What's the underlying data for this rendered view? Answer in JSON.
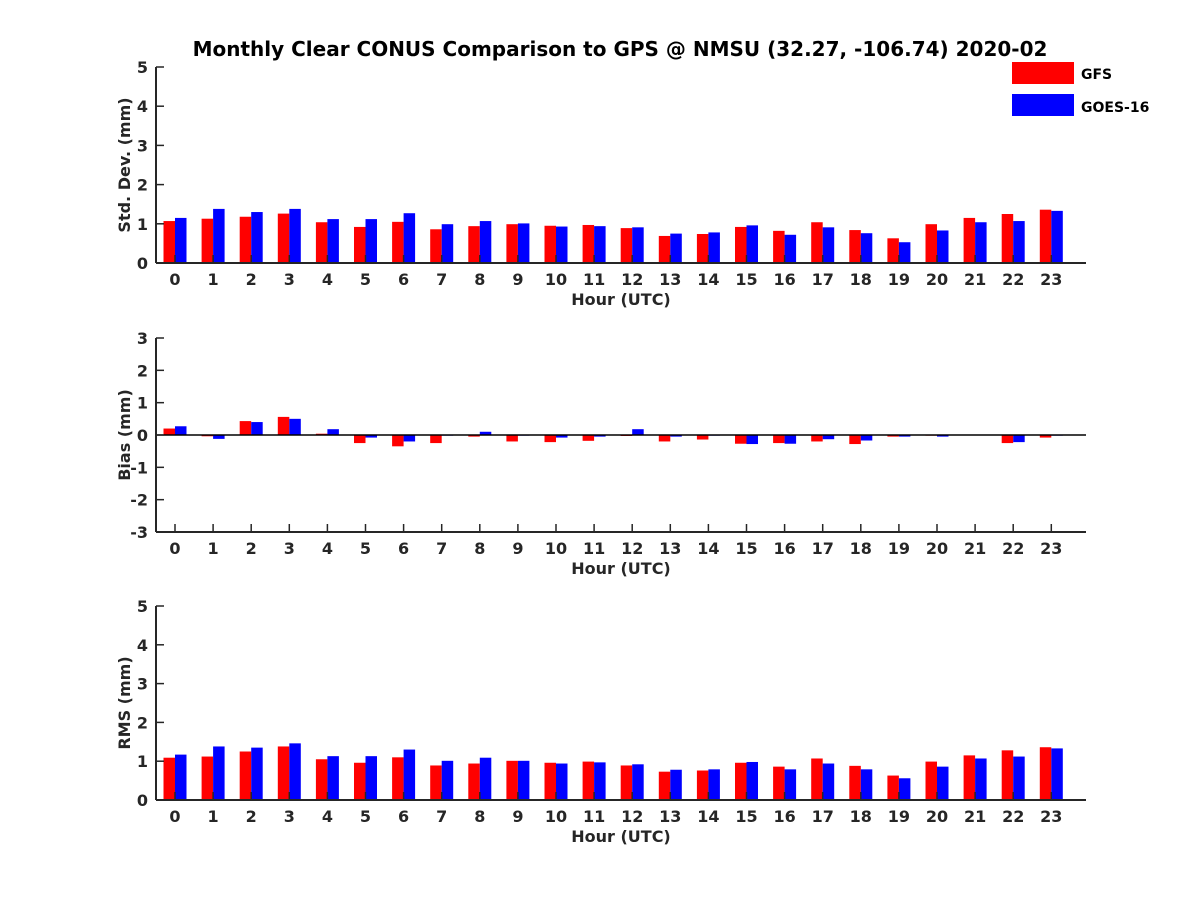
{
  "title": "Monthly Clear CONUS Comparison to GPS @ NMSU (32.27, -106.74) 2020-02",
  "legend": [
    {
      "name": "GFS",
      "color": "#ff0000"
    },
    {
      "name": "GOES-16",
      "color": "#0000ff"
    }
  ],
  "chart_data": [
    {
      "type": "bar",
      "ylabel": "Std. Dev. (mm)",
      "xlabel": "Hour (UTC)",
      "ylim": [
        0,
        5
      ],
      "yticks": [
        0,
        1,
        2,
        3,
        4,
        5
      ],
      "categories": [
        "0",
        "1",
        "2",
        "3",
        "4",
        "5",
        "6",
        "7",
        "8",
        "9",
        "10",
        "11",
        "12",
        "13",
        "14",
        "15",
        "16",
        "17",
        "18",
        "19",
        "20",
        "21",
        "22",
        "23"
      ],
      "series": [
        {
          "name": "GFS",
          "values": [
            1.07,
            1.13,
            1.18,
            1.26,
            1.04,
            0.92,
            1.05,
            0.86,
            0.94,
            0.99,
            0.95,
            0.97,
            0.89,
            0.69,
            0.74,
            0.92,
            0.82,
            1.04,
            0.84,
            0.63,
            0.99,
            1.15,
            1.25,
            1.36
          ]
        },
        {
          "name": "GOES-16",
          "values": [
            1.15,
            1.38,
            1.3,
            1.38,
            1.12,
            1.12,
            1.27,
            0.99,
            1.07,
            1.01,
            0.93,
            0.94,
            0.91,
            0.75,
            0.78,
            0.96,
            0.72,
            0.91,
            0.76,
            0.53,
            0.83,
            1.04,
            1.07,
            1.33
          ]
        }
      ]
    },
    {
      "type": "bar",
      "ylabel": "Bias (mm)",
      "xlabel": "Hour (UTC)",
      "ylim": [
        -3,
        3
      ],
      "yticks": [
        -3,
        -2,
        -1,
        0,
        1,
        2,
        3
      ],
      "zero_line": true,
      "categories": [
        "0",
        "1",
        "2",
        "3",
        "4",
        "5",
        "6",
        "7",
        "8",
        "9",
        "10",
        "11",
        "12",
        "13",
        "14",
        "15",
        "16",
        "17",
        "18",
        "19",
        "20",
        "21",
        "22",
        "23"
      ],
      "series": [
        {
          "name": "GFS",
          "values": [
            0.2,
            -0.04,
            0.43,
            0.56,
            0.04,
            -0.25,
            -0.35,
            -0.25,
            -0.05,
            -0.2,
            -0.22,
            -0.18,
            -0.03,
            -0.2,
            -0.14,
            -0.27,
            -0.25,
            -0.2,
            -0.28,
            -0.05,
            -0.02,
            0.0,
            -0.25,
            -0.08
          ]
        },
        {
          "name": "GOES-16",
          "values": [
            0.27,
            -0.12,
            0.4,
            0.5,
            0.18,
            -0.08,
            -0.2,
            -0.02,
            0.1,
            -0.02,
            -0.08,
            -0.05,
            0.18,
            -0.05,
            -0.02,
            -0.28,
            -0.27,
            -0.13,
            -0.17,
            -0.05,
            -0.05,
            0.0,
            -0.22,
            -0.02
          ]
        }
      ]
    },
    {
      "type": "bar",
      "ylabel": "RMS (mm)",
      "xlabel": "Hour (UTC)",
      "ylim": [
        0,
        5
      ],
      "yticks": [
        0,
        1,
        2,
        3,
        4,
        5
      ],
      "categories": [
        "0",
        "1",
        "2",
        "3",
        "4",
        "5",
        "6",
        "7",
        "8",
        "9",
        "10",
        "11",
        "12",
        "13",
        "14",
        "15",
        "16",
        "17",
        "18",
        "19",
        "20",
        "21",
        "22",
        "23"
      ],
      "series": [
        {
          "name": "GFS",
          "values": [
            1.09,
            1.12,
            1.25,
            1.38,
            1.05,
            0.96,
            1.1,
            0.89,
            0.94,
            1.01,
            0.96,
            0.99,
            0.89,
            0.73,
            0.76,
            0.96,
            0.86,
            1.07,
            0.88,
            0.63,
            0.99,
            1.15,
            1.28,
            1.36
          ]
        },
        {
          "name": "GOES-16",
          "values": [
            1.17,
            1.38,
            1.35,
            1.46,
            1.13,
            1.13,
            1.3,
            1.01,
            1.09,
            1.01,
            0.94,
            0.97,
            0.92,
            0.78,
            0.79,
            0.98,
            0.79,
            0.94,
            0.79,
            0.56,
            0.86,
            1.07,
            1.12,
            1.33
          ]
        }
      ]
    }
  ]
}
